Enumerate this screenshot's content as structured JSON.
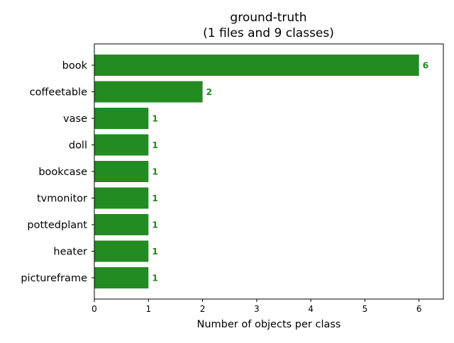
{
  "chart_data": {
    "type": "bar",
    "orientation": "horizontal",
    "title_line1": "ground-truth",
    "title_line2": "(1 files and 9 classes)",
    "xlabel": "Number of objects per class",
    "ylabel": "",
    "categories": [
      "book",
      "coffeetable",
      "vase",
      "doll",
      "bookcase",
      "tvmonitor",
      "pottedplant",
      "heater",
      "pictureframe"
    ],
    "values": [
      6,
      2,
      1,
      1,
      1,
      1,
      1,
      1,
      1
    ],
    "xlim": [
      0,
      6.45
    ],
    "xticks": [
      0,
      1,
      2,
      3,
      4,
      5,
      6
    ],
    "bar_color": "#228b22",
    "label_color": "#228b22",
    "grid": false,
    "legend": "none"
  }
}
